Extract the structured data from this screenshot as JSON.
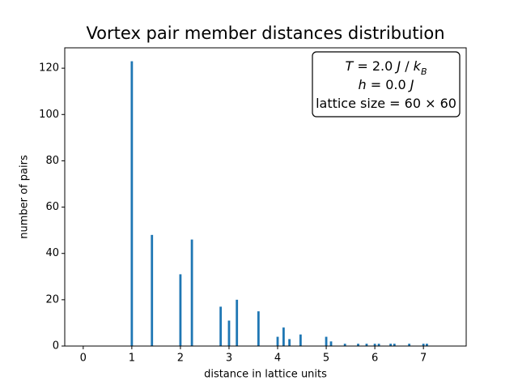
{
  "chart_data": {
    "type": "bar",
    "title": "Vortex pair member distances distribution",
    "x_label": "distance in lattice units",
    "y_label": "number of pairs",
    "x": [
      1,
      1.414,
      2,
      2.236,
      2.828,
      3,
      3.162,
      3.606,
      4,
      4.123,
      4.243,
      4.472,
      5,
      5.099,
      5.385,
      5.657,
      5.831,
      6,
      6.083,
      6.325,
      6.403,
      6.708,
      7,
      7.071
    ],
    "values": [
      123,
      48,
      31,
      46,
      17,
      11,
      20,
      15,
      4,
      8,
      3,
      5,
      4,
      2,
      1,
      1,
      1,
      1,
      1,
      1,
      1,
      1,
      1,
      1
    ],
    "color": "#1f77b4",
    "xlim": [
      -0.38,
      7.88
    ],
    "ylim": [
      0,
      128.8
    ],
    "xticks": [
      0,
      1,
      2,
      3,
      4,
      5,
      6,
      7
    ],
    "yticks": [
      0,
      20,
      40,
      60,
      80,
      100,
      120
    ],
    "grid": false,
    "annotation": [
      {
        "parts": [
          {
            "text": "T",
            "style": "it"
          },
          {
            "text": " = 2.0 "
          },
          {
            "text": "J",
            "style": "it"
          },
          {
            "text": " / "
          },
          {
            "text": "k",
            "style": "it"
          },
          {
            "text": "B",
            "style": "sub"
          }
        ]
      },
      {
        "parts": [
          {
            "text": "h",
            "style": "it"
          },
          {
            "text": " = 0.0 "
          },
          {
            "text": "J",
            "style": "it"
          }
        ]
      },
      {
        "parts": [
          {
            "text": "lattice size = 60 × 60"
          }
        ]
      }
    ]
  }
}
